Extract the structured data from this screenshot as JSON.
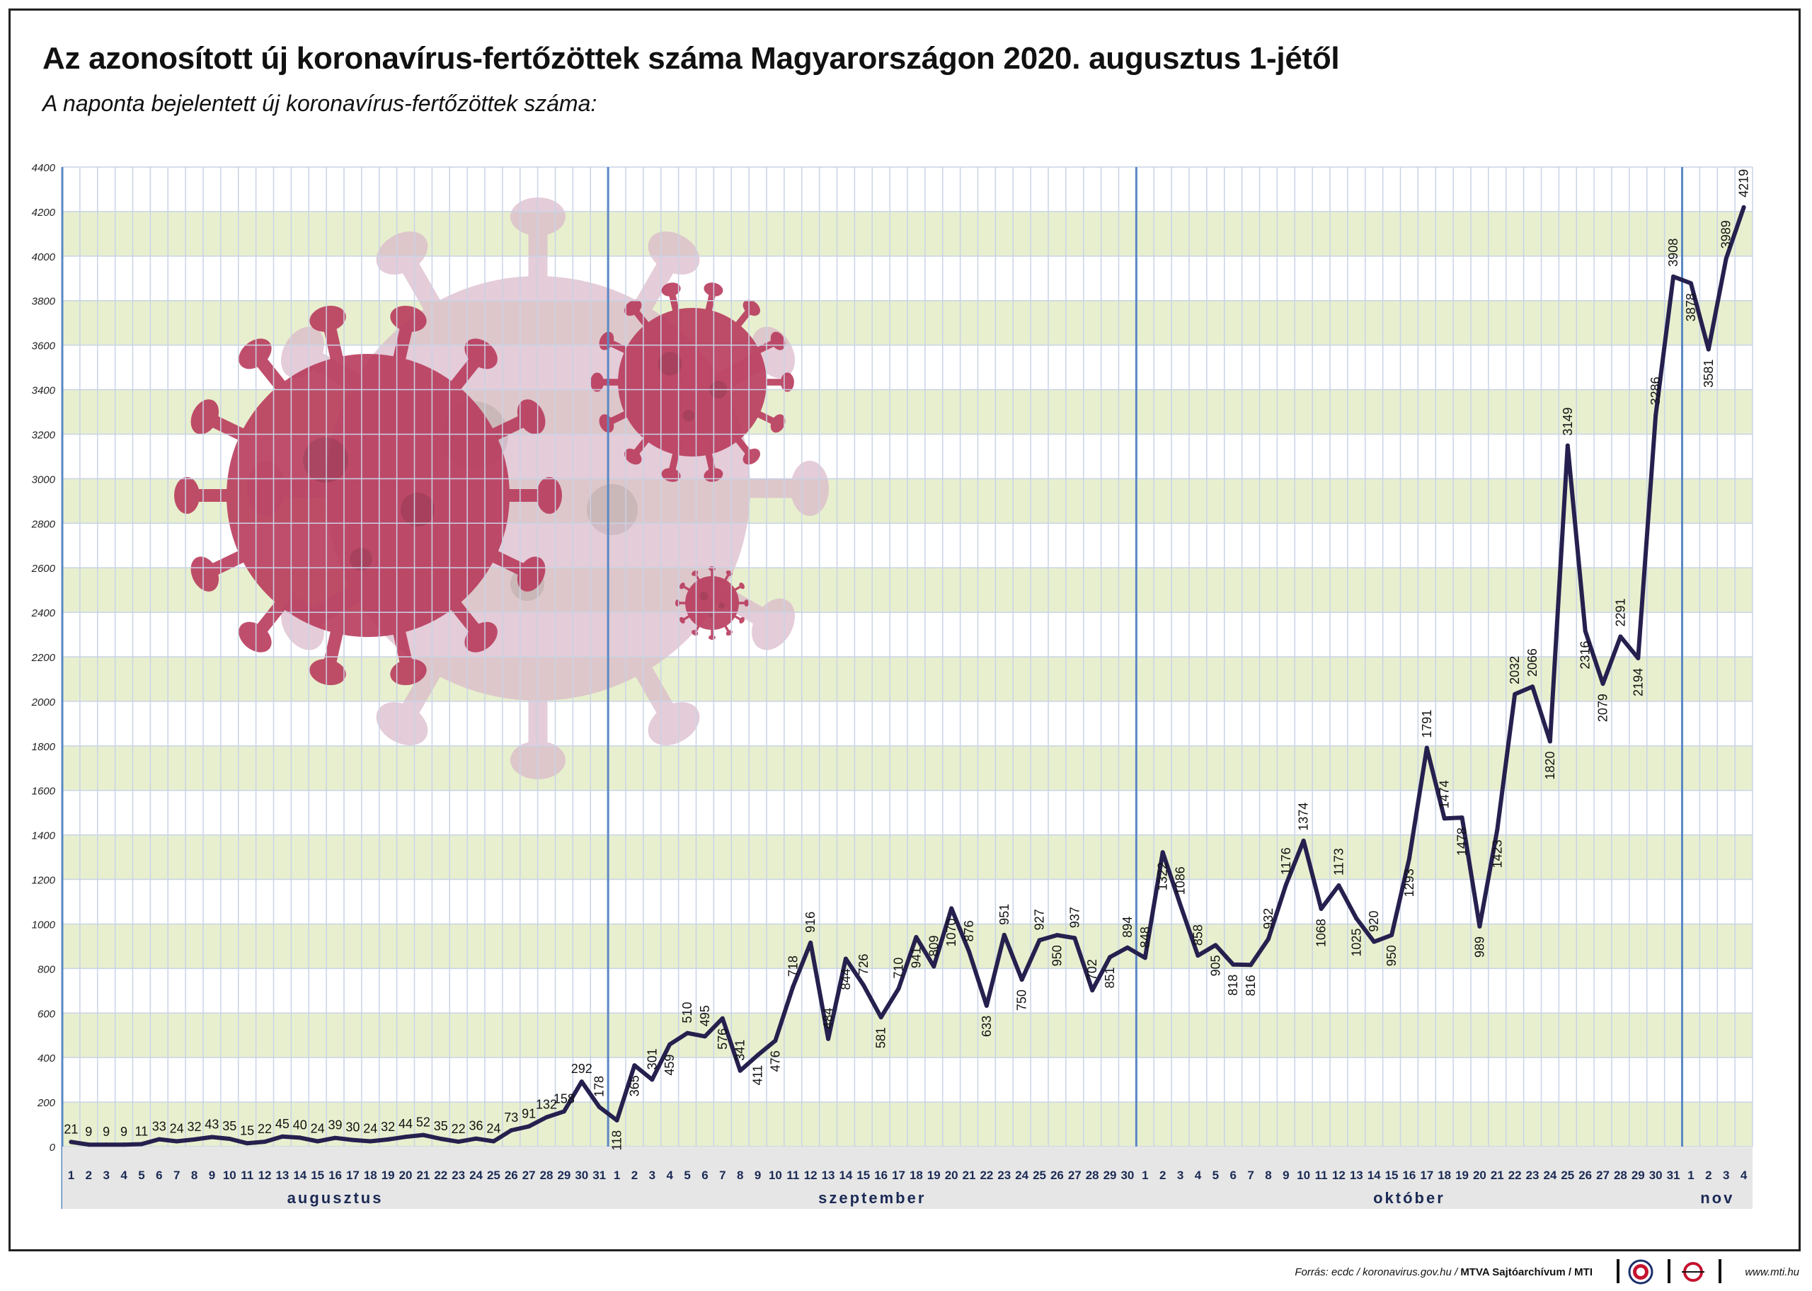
{
  "title": "Az azonosított új koronavírus-fertőzöttek száma Magyarországon 2020. augusztus 1-jétől",
  "subtitle": "A naponta bejelentett új koronavírus-fertőzöttek száma:",
  "footer": {
    "source_prefix": "Forrás: ecdc / koronavirus.gov.hu / ",
    "source_agency": "MTVA Sajtóarchívum / MTI",
    "website": "www.mti.hu"
  },
  "colors": {
    "line": "#25204e",
    "band": "#e8efcf",
    "grid": "#c9d3e6",
    "month_divider": "#5a88c4",
    "axis_bar": "#e6e6e6",
    "virus": "#b83a5c",
    "virus_faded": "#d9b6c7"
  },
  "chart_data": {
    "type": "line",
    "ylim": [
      0,
      4400
    ],
    "yticks": [
      0,
      200,
      400,
      600,
      800,
      1000,
      1200,
      1400,
      1600,
      1800,
      2000,
      2200,
      2400,
      2600,
      2800,
      3000,
      3200,
      3400,
      3600,
      3800,
      4000,
      4200,
      4400
    ],
    "months": [
      {
        "label": "augusztus",
        "days": 31
      },
      {
        "label": "szeptember",
        "days": 30
      },
      {
        "label": "október",
        "days": 31
      },
      {
        "label": "nov",
        "days": 4
      }
    ],
    "values": [
      21,
      9,
      9,
      9,
      11,
      33,
      24,
      32,
      43,
      35,
      15,
      22,
      45,
      40,
      24,
      39,
      30,
      24,
      32,
      44,
      52,
      35,
      22,
      36,
      24,
      73,
      91,
      132,
      158,
      292,
      178,
      118,
      365,
      301,
      459,
      510,
      495,
      576,
      341,
      411,
      476,
      718,
      916,
      484,
      844,
      726,
      581,
      710,
      941,
      809,
      1070,
      876,
      633,
      951,
      750,
      927,
      950,
      937,
      702,
      851,
      894,
      848,
      1322,
      1086,
      858,
      905,
      818,
      816,
      932,
      1176,
      1374,
      1068,
      1173,
      1025,
      920,
      950,
      1293,
      1791,
      1474,
      1478,
      989,
      1423,
      2032,
      2066,
      1820,
      3149,
      2316,
      2079,
      2291,
      2194,
      3286,
      3908,
      3878,
      3581,
      3989,
      4219
    ],
    "label_below": [
      31,
      32,
      34,
      37,
      39,
      40,
      44,
      46,
      48,
      50,
      52,
      54,
      56,
      59,
      62,
      65,
      66,
      67,
      71,
      73,
      75,
      76,
      79,
      80,
      81,
      84,
      86,
      87,
      89,
      92,
      93
    ]
  }
}
